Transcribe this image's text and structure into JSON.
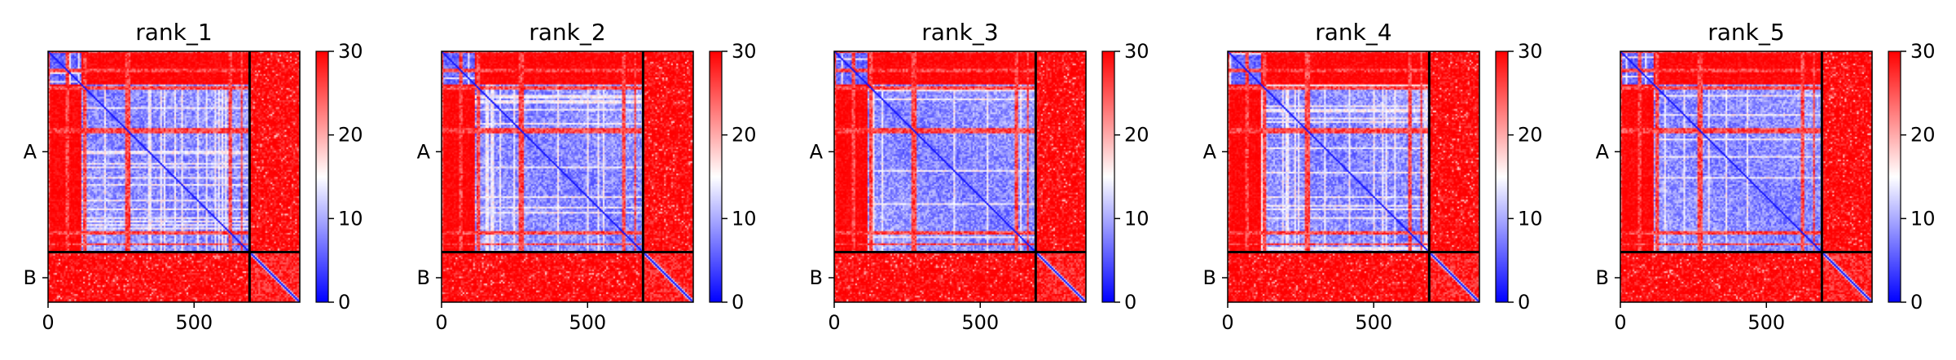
{
  "colors": {
    "low": "#0000ff",
    "mid": "#ffffff",
    "high": "#ff0000",
    "frame": "#000000"
  },
  "chart_data": [
    {
      "type": "heatmap",
      "title": "rank_1",
      "x_ticks": [
        {
          "value": 0,
          "label": "0"
        },
        {
          "value": 500,
          "label": "500"
        }
      ],
      "y_ticks": [
        {
          "value": 345,
          "label": "A"
        },
        {
          "value": 778,
          "label": "B"
        }
      ],
      "xlim": [
        0,
        862
      ],
      "ylim": [
        862,
        0
      ],
      "chain_boundary": 690,
      "colorbar": {
        "min": 0,
        "max": 30,
        "ticks": [
          "0",
          "10",
          "20",
          "30"
        ]
      }
    },
    {
      "type": "heatmap",
      "title": "rank_2",
      "x_ticks": [
        {
          "value": 0,
          "label": "0"
        },
        {
          "value": 500,
          "label": "500"
        }
      ],
      "y_ticks": [
        {
          "value": 345,
          "label": "A"
        },
        {
          "value": 778,
          "label": "B"
        }
      ],
      "xlim": [
        0,
        862
      ],
      "ylim": [
        862,
        0
      ],
      "chain_boundary": 690,
      "colorbar": {
        "min": 0,
        "max": 30,
        "ticks": [
          "0",
          "10",
          "20",
          "30"
        ]
      }
    },
    {
      "type": "heatmap",
      "title": "rank_3",
      "x_ticks": [
        {
          "value": 0,
          "label": "0"
        },
        {
          "value": 500,
          "label": "500"
        }
      ],
      "y_ticks": [
        {
          "value": 345,
          "label": "A"
        },
        {
          "value": 778,
          "label": "B"
        }
      ],
      "xlim": [
        0,
        862
      ],
      "ylim": [
        862,
        0
      ],
      "chain_boundary": 690,
      "colorbar": {
        "min": 0,
        "max": 30,
        "ticks": [
          "0",
          "10",
          "20",
          "30"
        ]
      }
    },
    {
      "type": "heatmap",
      "title": "rank_4",
      "x_ticks": [
        {
          "value": 0,
          "label": "0"
        },
        {
          "value": 500,
          "label": "500"
        }
      ],
      "y_ticks": [
        {
          "value": 345,
          "label": "A"
        },
        {
          "value": 778,
          "label": "B"
        }
      ],
      "xlim": [
        0,
        862
      ],
      "ylim": [
        862,
        0
      ],
      "chain_boundary": 690,
      "colorbar": {
        "min": 0,
        "max": 30,
        "ticks": [
          "0",
          "10",
          "20",
          "30"
        ]
      }
    },
    {
      "type": "heatmap",
      "title": "rank_5",
      "x_ticks": [
        {
          "value": 0,
          "label": "0"
        },
        {
          "value": 500,
          "label": "500"
        }
      ],
      "y_ticks": [
        {
          "value": 345,
          "label": "A"
        },
        {
          "value": 778,
          "label": "B"
        }
      ],
      "xlim": [
        0,
        862
      ],
      "ylim": [
        862,
        0
      ],
      "chain_boundary": 690,
      "colorbar": {
        "min": 0,
        "max": 30,
        "ticks": [
          "0",
          "10",
          "20",
          "30"
        ]
      }
    }
  ]
}
